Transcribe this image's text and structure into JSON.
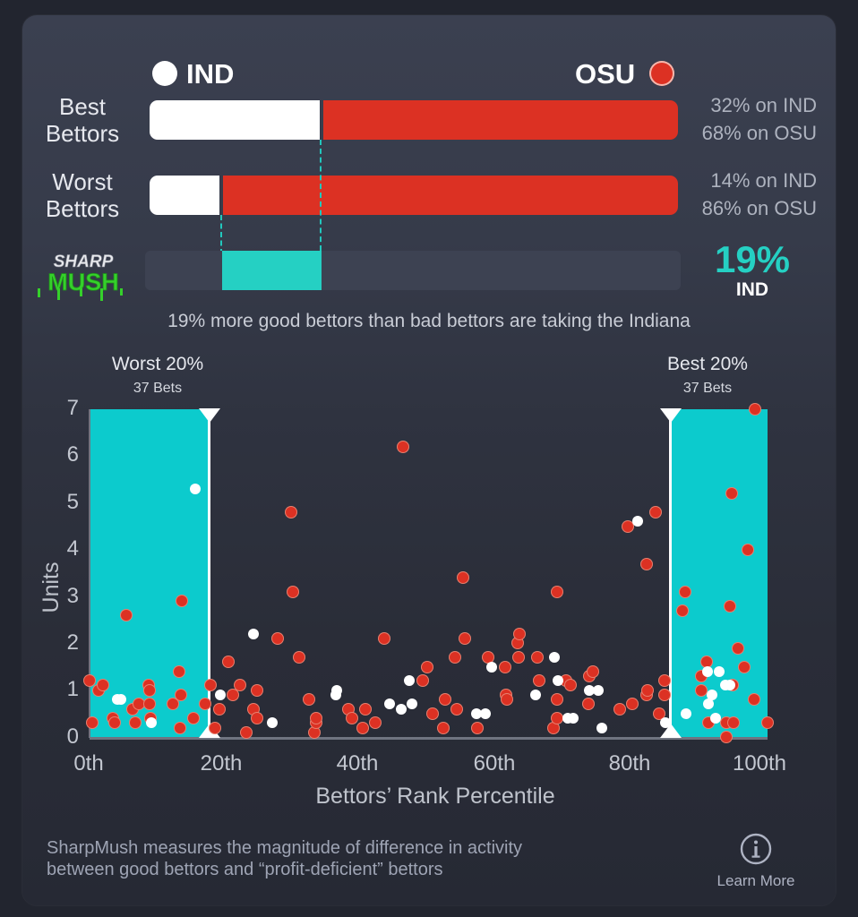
{
  "legend": {
    "left_team": "IND",
    "right_team": "OSU",
    "left_color": "#ffffff",
    "right_color": "#dc3123"
  },
  "rows": [
    {
      "label_line1": "Best",
      "label_line2": "Bettors",
      "left_pct": 32,
      "right_pct": 68,
      "left_text": "32% on IND",
      "right_text": "68% on OSU"
    },
    {
      "label_line1": "Worst",
      "label_line2": "Bettors",
      "left_pct": 14,
      "right_pct": 86,
      "left_text": "14% on IND",
      "right_text": "86% on OSU"
    }
  ],
  "sharpmush": {
    "logo_line1": "SHARP",
    "logo_line2": "MUSH",
    "diff_pct_label": "19%",
    "diff_team": "IND",
    "accent_color": "#25d0c3",
    "summary": "19% more good bettors than bad bettors are taking the Indiana"
  },
  "zones": {
    "worst": {
      "title": "Worst 20%",
      "sub": "37 Bets"
    },
    "best": {
      "title": "Best 20%",
      "sub": "37 Bets"
    }
  },
  "footer": {
    "description_line1": "SharpMush measures the magnitude of difference in activity",
    "description_line2": "between good bettors and “profit-deficient” bettors",
    "learn_more": "Learn More",
    "info_icon": "i"
  },
  "chart_data": [
    {
      "type": "bar",
      "orientation": "horizontal-stacked",
      "categories": [
        "Best Bettors",
        "Worst Bettors"
      ],
      "series": [
        {
          "name": "IND",
          "values": [
            32,
            14
          ]
        },
        {
          "name": "OSU",
          "values": [
            68,
            86
          ]
        }
      ],
      "annotation": "19% IND (difference Best vs Worst)",
      "xlim": [
        0,
        100
      ]
    },
    {
      "type": "scatter",
      "title": "",
      "xlabel": "Bettors’ Rank Percentile",
      "ylabel": "Units",
      "xlim": [
        0,
        100
      ],
      "ylim": [
        0,
        7
      ],
      "x_ticks": [
        "0th",
        "20th",
        "40th",
        "60th",
        "80th",
        "100th"
      ],
      "y_ticks": [
        "0",
        "1",
        "2",
        "3",
        "4",
        "5",
        "6",
        "7"
      ],
      "highlight_regions": [
        {
          "label": "Worst 20%",
          "sub": "37 Bets",
          "x_range": [
            0,
            17.6
          ]
        },
        {
          "label": "Best 20%",
          "sub": "37 Bets",
          "x_range": [
            85.8,
            100
          ]
        }
      ],
      "series": [
        {
          "name": "IND",
          "color": "#ffffff",
          "points": [
            [
              4.1,
              0.8
            ],
            [
              4.6,
              0.8
            ],
            [
              9.1,
              0.3
            ],
            [
              15.6,
              5.3
            ],
            [
              19.3,
              0.9
            ],
            [
              24.2,
              2.2
            ],
            [
              26.9,
              0.3
            ],
            [
              36.3,
              0.9
            ],
            [
              36.5,
              1.0
            ],
            [
              44.3,
              0.7
            ],
            [
              46.0,
              0.6
            ],
            [
              47.2,
              1.2
            ],
            [
              47.6,
              0.7
            ],
            [
              57.1,
              0.5
            ],
            [
              58.4,
              0.5
            ],
            [
              59.3,
              1.5
            ],
            [
              65.8,
              0.9
            ],
            [
              68.6,
              1.7
            ],
            [
              69.1,
              1.2
            ],
            [
              70.5,
              0.4
            ],
            [
              71.4,
              0.4
            ],
            [
              73.7,
              1.0
            ],
            [
              75.0,
              1.0
            ],
            [
              75.6,
              0.2
            ],
            [
              80.8,
              4.6
            ],
            [
              85.0,
              0.3
            ],
            [
              91.1,
              1.4
            ],
            [
              92.9,
              1.4
            ],
            [
              93.8,
              1.1
            ],
            [
              94.5,
              1.1
            ],
            [
              91.8,
              0.9
            ],
            [
              91.3,
              0.7
            ],
            [
              88.0,
              0.5
            ],
            [
              92.3,
              0.4
            ]
          ]
        },
        {
          "name": "OSU",
          "color": "#dc3123",
          "points": [
            [
              0.0,
              1.2
            ],
            [
              0.4,
              0.3
            ],
            [
              1.3,
              1.0
            ],
            [
              2.0,
              1.1
            ],
            [
              3.4,
              0.4
            ],
            [
              3.7,
              0.3
            ],
            [
              5.4,
              2.6
            ],
            [
              6.3,
              0.6
            ],
            [
              7.3,
              0.7
            ],
            [
              6.7,
              0.3
            ],
            [
              8.7,
              1.1
            ],
            [
              8.8,
              1.0
            ],
            [
              8.8,
              0.7
            ],
            [
              9.0,
              0.4
            ],
            [
              12.3,
              0.7
            ],
            [
              13.2,
              1.4
            ],
            [
              13.5,
              0.9
            ],
            [
              13.6,
              2.9
            ],
            [
              13.3,
              0.2
            ],
            [
              15.3,
              0.4
            ],
            [
              17.0,
              0.7
            ],
            [
              17.8,
              1.1
            ],
            [
              18.5,
              0.2
            ],
            [
              19.2,
              0.6
            ],
            [
              20.5,
              1.6
            ],
            [
              21.1,
              0.9
            ],
            [
              22.2,
              1.1
            ],
            [
              23.1,
              0.1
            ],
            [
              24.2,
              0.6
            ],
            [
              24.7,
              1.0
            ],
            [
              24.7,
              0.4
            ],
            [
              27.7,
              2.1
            ],
            [
              29.7,
              4.8
            ],
            [
              30.0,
              3.1
            ],
            [
              30.9,
              1.7
            ],
            [
              32.4,
              0.8
            ],
            [
              33.2,
              0.1
            ],
            [
              33.4,
              0.3
            ],
            [
              33.4,
              0.4
            ],
            [
              38.2,
              0.6
            ],
            [
              38.7,
              0.4
            ],
            [
              40.3,
              0.2
            ],
            [
              40.7,
              0.6
            ],
            [
              42.1,
              0.3
            ],
            [
              43.5,
              2.1
            ],
            [
              46.2,
              6.2
            ],
            [
              49.1,
              1.2
            ],
            [
              49.8,
              1.5
            ],
            [
              50.6,
              0.5
            ],
            [
              52.2,
              0.2
            ],
            [
              52.4,
              0.8
            ],
            [
              53.9,
              1.7
            ],
            [
              54.2,
              0.6
            ],
            [
              55.1,
              3.4
            ],
            [
              55.4,
              2.1
            ],
            [
              57.2,
              0.2
            ],
            [
              58.8,
              1.7
            ],
            [
              61.3,
              1.5
            ],
            [
              61.4,
              0.9
            ],
            [
              61.6,
              0.8
            ],
            [
              63.1,
              2.0
            ],
            [
              63.4,
              2.2
            ],
            [
              63.3,
              1.7
            ],
            [
              66.1,
              1.7
            ],
            [
              66.3,
              1.2
            ],
            [
              68.4,
              0.2
            ],
            [
              68.9,
              3.1
            ],
            [
              68.9,
              0.8
            ],
            [
              68.9,
              0.4
            ],
            [
              70.3,
              1.2
            ],
            [
              70.9,
              1.1
            ],
            [
              73.7,
              1.3
            ],
            [
              74.2,
              1.4
            ],
            [
              73.6,
              0.7
            ],
            [
              78.2,
              0.6
            ],
            [
              80.0,
              0.7
            ],
            [
              79.4,
              4.5
            ],
            [
              82.2,
              3.7
            ],
            [
              82.2,
              0.9
            ],
            [
              82.3,
              1.0
            ],
            [
              83.5,
              4.8
            ],
            [
              84.0,
              0.5
            ],
            [
              84.8,
              0.9
            ],
            [
              84.8,
              1.2
            ],
            [
              98.1,
              7.0
            ],
            [
              94.7,
              5.2
            ],
            [
              97.1,
              4.0
            ],
            [
              87.8,
              3.1
            ],
            [
              87.4,
              2.7
            ],
            [
              94.5,
              2.8
            ],
            [
              95.7,
              1.9
            ],
            [
              96.5,
              1.5
            ],
            [
              91.0,
              1.6
            ],
            [
              90.2,
              1.3
            ],
            [
              90.2,
              1.0
            ],
            [
              94.8,
              1.1
            ],
            [
              98.0,
              0.8
            ],
            [
              91.3,
              0.3
            ],
            [
              93.9,
              0.3
            ],
            [
              93.9,
              0.0
            ],
            [
              100.0,
              0.3
            ],
            [
              95.0,
              0.3
            ]
          ]
        }
      ]
    }
  ]
}
